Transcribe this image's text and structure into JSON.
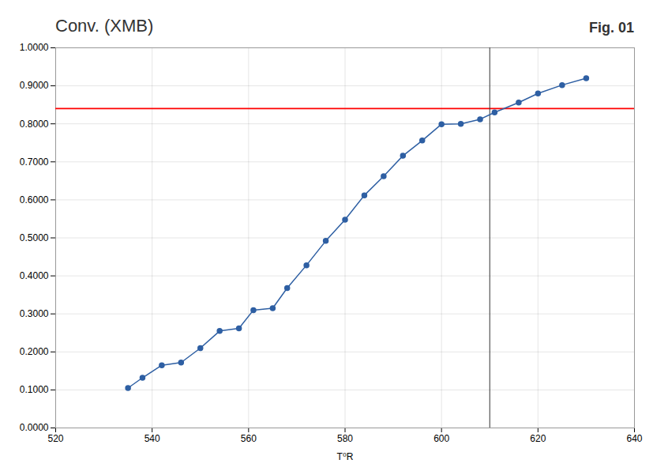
{
  "chart_data": {
    "type": "line",
    "title": "Conv. (XMB)",
    "x_label": "T⁰R",
    "x": [
      535,
      538,
      542,
      546,
      550,
      554,
      558,
      561,
      565,
      568,
      572,
      576,
      580,
      584,
      588,
      592,
      596,
      600,
      604,
      608,
      611,
      616,
      620,
      625,
      630
    ],
    "values": [
      0.105,
      0.132,
      0.165,
      0.172,
      0.21,
      0.255,
      0.262,
      0.31,
      0.315,
      0.368,
      0.428,
      0.492,
      0.548,
      0.612,
      0.662,
      0.716,
      0.756,
      0.799,
      0.8,
      0.812,
      0.83,
      0.856,
      0.88,
      0.902,
      0.92
    ],
    "color": "#2e5fa3",
    "marker": "circle",
    "line_style": "solid",
    "xlim": [
      520,
      640
    ],
    "xticks": [
      520,
      540,
      560,
      580,
      600,
      620,
      640
    ],
    "ylim": [
      0.0,
      1.0
    ],
    "yticks": [
      {
        "value": 0.0,
        "label": "0.0000"
      },
      {
        "value": 0.1,
        "label": "0.1000"
      },
      {
        "value": 0.2,
        "label": "0.2000"
      },
      {
        "value": 0.3,
        "label": "0.3000"
      },
      {
        "value": 0.4,
        "label": "0.4000"
      },
      {
        "value": 0.5,
        "label": "0.5000"
      },
      {
        "value": 0.6,
        "label": "0.6000"
      },
      {
        "value": 0.7,
        "label": "0.7000"
      },
      {
        "value": 0.8,
        "label": "0.8000"
      },
      {
        "value": 0.9,
        "label": "0.9000"
      },
      {
        "value": 1.0,
        "label": "1.0000"
      }
    ],
    "grid": true,
    "annotations": [
      {
        "type": "hline",
        "y": 0.84,
        "color": "#ff0000"
      },
      {
        "type": "vline",
        "x": 610,
        "color": "#333333"
      },
      {
        "type": "text",
        "text": "Fig. 01"
      }
    ]
  }
}
